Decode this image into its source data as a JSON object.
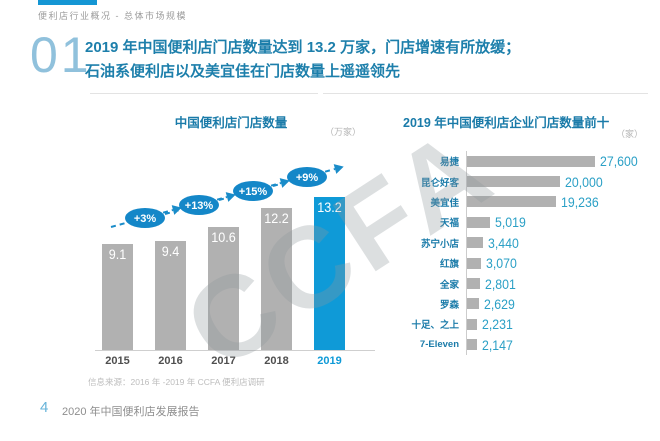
{
  "page": {
    "header": "便利店行业概况 - 总体市场规模",
    "section_number": "01",
    "title_line1": "2019 年中国便利店门店数量达到 13.2 万家，门店增速有所放缓；",
    "title_line2": "石油系便利店以及美宜佳在门店数量上遥遥领先",
    "watermark": "CCFA",
    "source": "信息来源：2016 年 -2019 年 CCFA 便利店调研",
    "footer_page": "4",
    "footer_text": "2020 年中国便利店发展报告"
  },
  "colors": {
    "accent_blue": "#0f9ad7",
    "badge_blue": "#1487c8",
    "arrow_blue": "#1a8cc9",
    "title_teal": "#1d7fab",
    "bar_gray": "#b1b1b1",
    "value_teal": "#2ba0c6",
    "muted_gray": "#bdbdbd"
  },
  "chart_data": [
    {
      "type": "bar",
      "title": "中国便利店门店数量",
      "unit": "（万家）",
      "categories": [
        "2015",
        "2016",
        "2017",
        "2018",
        "2019"
      ],
      "values": [
        9.1,
        9.4,
        10.6,
        12.2,
        13.2
      ],
      "value_labels": [
        "9.1",
        "9.4",
        "10.6",
        "12.2",
        "13.2"
      ],
      "growth_labels": [
        "+3%",
        "+13%",
        "+15%",
        "+9%"
      ],
      "highlight_index": 4,
      "ylim": [
        0,
        14
      ],
      "legend": "none",
      "grid": "off"
    },
    {
      "type": "bar-horizontal",
      "title": "2019 年中国便利店企业门店数量前十",
      "unit": "（家）",
      "categories": [
        "易捷",
        "昆仑好客",
        "美宜佳",
        "天福",
        "苏宁小店",
        "红旗",
        "全家",
        "罗森",
        "十足、之上",
        "7-Eleven"
      ],
      "values": [
        27600,
        20000,
        19236,
        5019,
        3440,
        3070,
        2801,
        2629,
        2231,
        2147
      ],
      "value_labels": [
        "27,600",
        "20,000",
        "19,236",
        "5,019",
        "3,440",
        "3,070",
        "2,801",
        "2,629",
        "2,231",
        "2,147"
      ],
      "xlim": [
        0,
        30000
      ],
      "legend": "none",
      "grid": "off"
    }
  ]
}
